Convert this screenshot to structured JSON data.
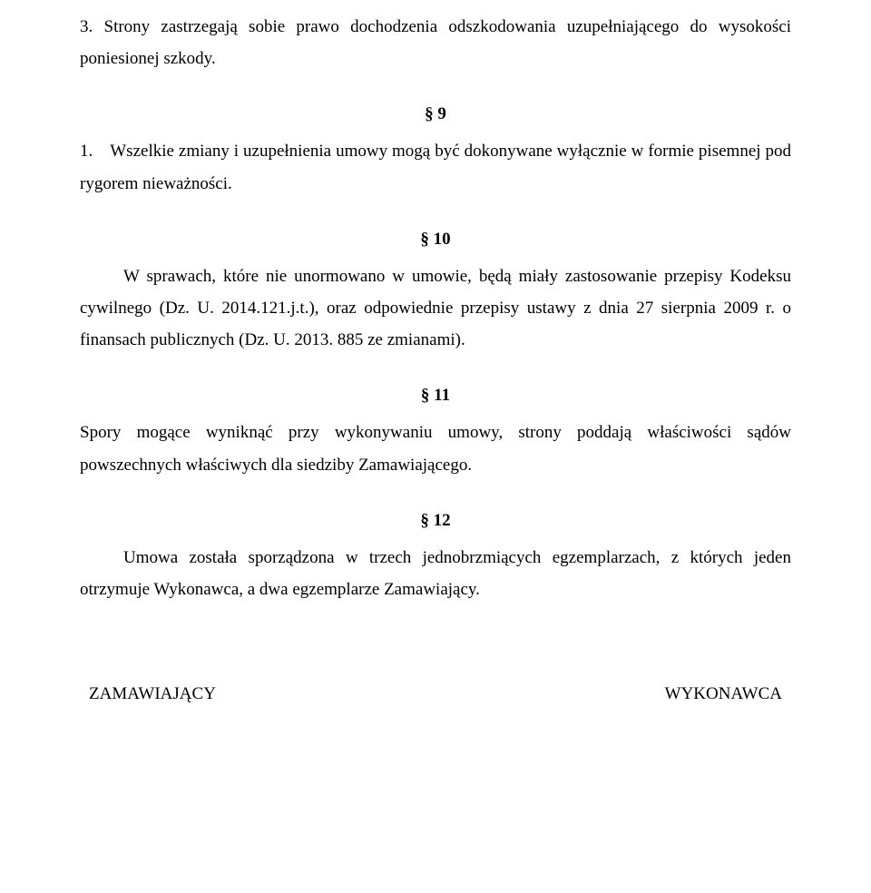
{
  "para1": "3. Strony zastrzegają sobie prawo dochodzenia odszkodowania uzupełniającego do wysokości poniesionej szkody.",
  "sec9": "§ 9",
  "para2": "1. Wszelkie zmiany i uzupełnienia umowy mogą być dokonywane wyłącznie w formie pisemnej pod rygorem nieważności.",
  "sec10": "§ 10",
  "para3": "W sprawach, które nie unormowano w umowie, będą miały zastosowanie przepisy Kodeksu cywilnego (Dz. U. 2014.121.j.t.), oraz odpowiednie przepisy ustawy z dnia 27 sierpnia 2009 r. o finansach publicznych (Dz. U. 2013. 885 ze zmianami).",
  "sec11": "§ 11",
  "para4": "Spory mogące wyniknąć przy wykonywaniu umowy, strony poddają właściwości sądów powszechnych właściwych dla siedziby Zamawiającego.",
  "sec12": "§ 12",
  "para5": "Umowa została sporządzona w trzech jednobrzmiących egzemplarzach, z których jeden otrzymuje Wykonawca, a dwa egzemplarze Zamawiający.",
  "sig_left": "ZAMAWIAJĄCY",
  "sig_right": "WYKONAWCA"
}
